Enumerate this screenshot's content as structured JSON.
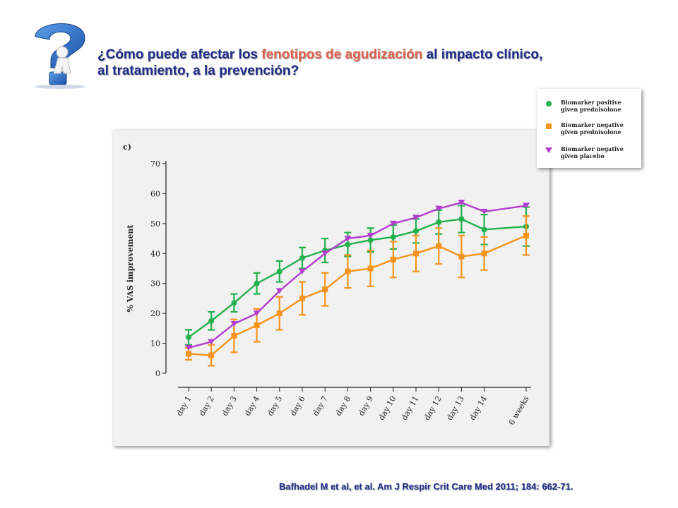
{
  "slide": {
    "heading_line1_pre": "¿Cómo puede afectar los ",
    "heading_line1_highlight": "fenotipos de agudización",
    "heading_line1_post": " al impacto clínico,",
    "heading_line2": "al tratamiento, a la prevención?",
    "citation": "Bafhadel M et al, et al. Am J Respir Crit Care Med 2011; 184: 662-71.",
    "logo_icon": "question-mark-figure-icon"
  },
  "colors": {
    "heading": "#1f2d8a",
    "highlight": "#e0614f",
    "green": "#22b14c",
    "orange": "#f7941d",
    "purple": "#b23ccf"
  },
  "chart_data": {
    "type": "line",
    "panel_label": "c)",
    "ylabel": "% VAS improvement",
    "xlabel": "",
    "ylim": [
      0,
      70
    ],
    "yticks": [
      0,
      10,
      20,
      30,
      40,
      50,
      60,
      70
    ],
    "categories": [
      "day 1",
      "day 2",
      "day 3",
      "day 4",
      "day 5",
      "day 6",
      "day 7",
      "day 8",
      "day 9",
      "day 10",
      "day 11",
      "day 12",
      "day 13",
      "day 14",
      "6 weeks"
    ],
    "grid": false,
    "legend_position": "top-right outside",
    "series": [
      {
        "name": "Biomarker positive given prednisolone",
        "marker": "circle",
        "color": "#22b14c",
        "values": [
          12,
          17.5,
          23.5,
          30,
          34,
          38.5,
          41,
          43,
          44.5,
          45.5,
          47.5,
          50.5,
          51.5,
          48,
          49
        ],
        "errors": [
          2.5,
          3,
          3,
          3.5,
          3.5,
          3.5,
          4,
          4,
          4,
          4,
          4,
          4,
          4.5,
          5,
          6.5
        ]
      },
      {
        "name": "Biomarker negative given prednisolone",
        "marker": "square",
        "color": "#f7941d",
        "values": [
          6.5,
          6,
          12.5,
          16,
          20,
          25,
          28,
          34,
          35,
          38,
          40,
          42.5,
          39,
          40,
          46
        ],
        "errors": [
          2,
          3.5,
          5.5,
          5.5,
          5.5,
          5.5,
          5.5,
          5.5,
          6,
          6,
          6,
          6,
          7,
          5.5,
          6.5
        ]
      },
      {
        "name": "Biomarker negative given placebo",
        "marker": "triangle-down",
        "color": "#b23ccf",
        "values": [
          8.5,
          10.5,
          16.5,
          20,
          27.5,
          34,
          40,
          45,
          46,
          50,
          52,
          55,
          57,
          54,
          56
        ]
      }
    ]
  }
}
